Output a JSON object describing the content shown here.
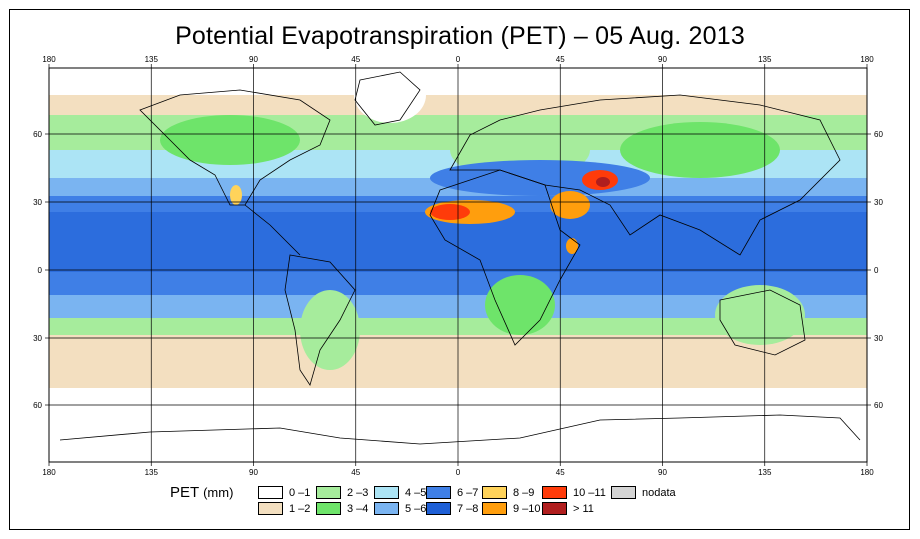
{
  "title": "Potential Evapotranspiration (PET) – 05 Aug. 2013",
  "legend": {
    "title": "PET",
    "unit": "(mm)",
    "items": [
      {
        "label": "0 –1",
        "color": "#ffffff"
      },
      {
        "label": "1 –2",
        "color": "#f3dfc0"
      },
      {
        "label": "2 –3",
        "color": "#a6ec9c"
      },
      {
        "label": "3 –4",
        "color": "#6ee46a"
      },
      {
        "label": "4 –5",
        "color": "#ace4f5"
      },
      {
        "label": "5 –6",
        "color": "#7ab4f1"
      },
      {
        "label": "6 –7",
        "color": "#3f7fe6"
      },
      {
        "label": "7 –8",
        "color": "#1e5fd6"
      },
      {
        "label": "8 –9",
        "color": "#ffd35a"
      },
      {
        "label": "9 –10",
        "color": "#ff9e0d"
      },
      {
        "label": "10 –11",
        "color": "#ff3b0a"
      },
      {
        "label": "> 11",
        "color": "#b01e1e"
      },
      {
        "label": "nodata",
        "color": "#d4d4d4"
      }
    ]
  },
  "axes": {
    "lon_labels": [
      "180",
      "135",
      "90",
      "45",
      "0",
      "45",
      "90",
      "135",
      "180"
    ],
    "lat_labels": [
      "60",
      "30",
      "0",
      "30",
      "60"
    ]
  }
}
